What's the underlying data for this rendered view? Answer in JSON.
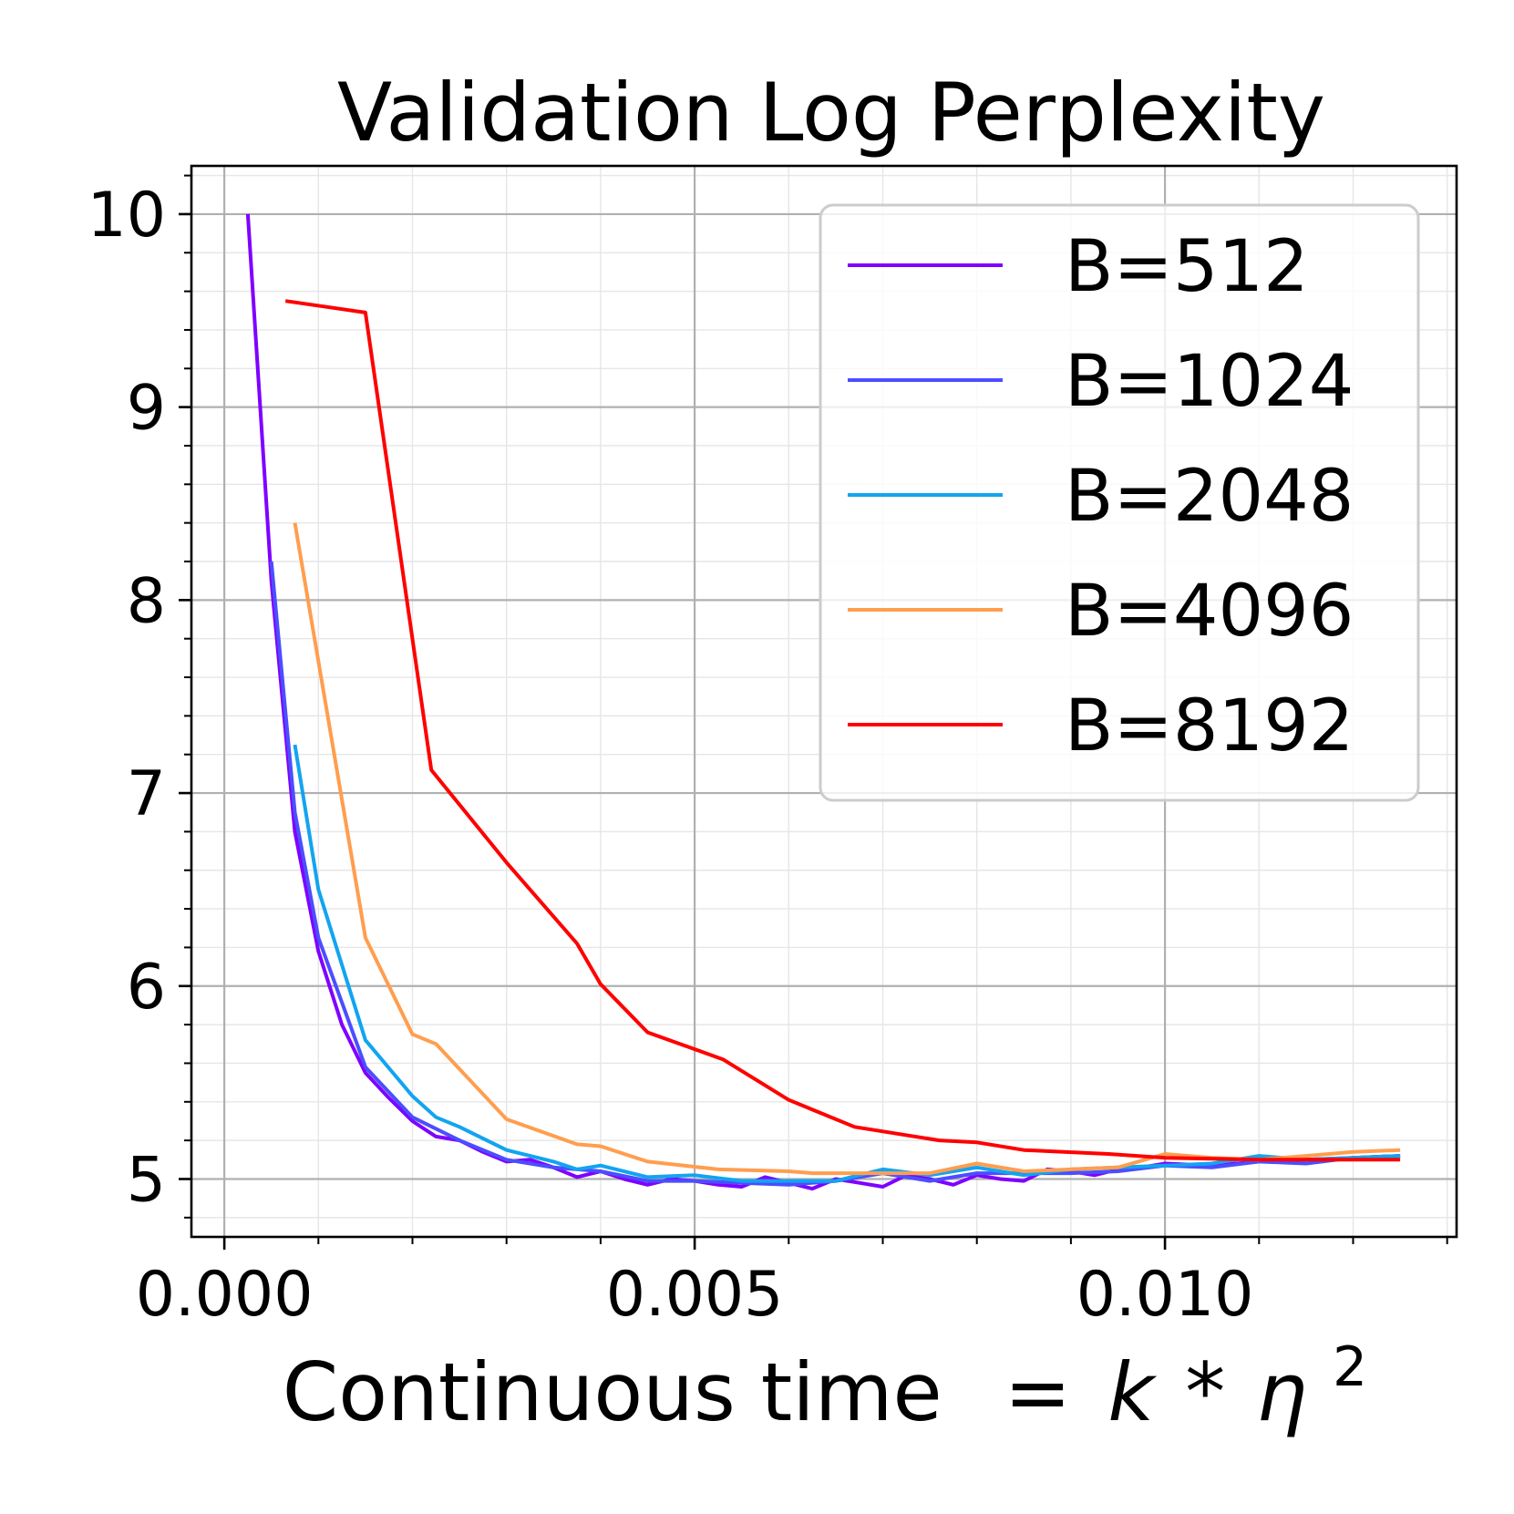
{
  "chart_data": {
    "type": "line",
    "title": "Validation Log Perplexity",
    "xlabel": "Continuous time",
    "xlabel_formula": {
      "eq": "=",
      "k": "k",
      "star": "*",
      "eta": "η",
      "exp": "2"
    },
    "ylabel": "",
    "xlim": [
      -0.00035,
      0.0131
    ],
    "ylim": [
      4.7,
      10.25
    ],
    "x_ticks": [
      {
        "value": 0.0,
        "label": "0.000"
      },
      {
        "value": 0.005,
        "label": "0.005"
      },
      {
        "value": 0.01,
        "label": "0.010"
      }
    ],
    "x_minor_step": 0.001,
    "y_ticks": [
      {
        "value": 5,
        "label": "5"
      },
      {
        "value": 6,
        "label": "6"
      },
      {
        "value": 7,
        "label": "7"
      },
      {
        "value": 8,
        "label": "8"
      },
      {
        "value": 9,
        "label": "9"
      },
      {
        "value": 10,
        "label": "10"
      }
    ],
    "y_minor_step": 0.2,
    "grid": true,
    "legend_position": "top-right",
    "series": [
      {
        "name": "B=512",
        "color": "#7f00ff",
        "points": [
          [
            0.00025,
            10.0
          ],
          [
            0.0005,
            8.1
          ],
          [
            0.00075,
            6.8
          ],
          [
            0.001,
            6.18
          ],
          [
            0.00125,
            5.8
          ],
          [
            0.0015,
            5.55
          ],
          [
            0.00175,
            5.42
          ],
          [
            0.002,
            5.3
          ],
          [
            0.00225,
            5.22
          ],
          [
            0.0025,
            5.2
          ],
          [
            0.00275,
            5.14
          ],
          [
            0.003,
            5.09
          ],
          [
            0.00325,
            5.1
          ],
          [
            0.0035,
            5.06
          ],
          [
            0.00375,
            5.01
          ],
          [
            0.004,
            5.04
          ],
          [
            0.00425,
            5.0
          ],
          [
            0.0045,
            4.97
          ],
          [
            0.00475,
            5.0
          ],
          [
            0.005,
            4.99
          ],
          [
            0.00525,
            4.97
          ],
          [
            0.0055,
            4.96
          ],
          [
            0.00575,
            5.01
          ],
          [
            0.006,
            4.98
          ],
          [
            0.00625,
            4.95
          ],
          [
            0.0065,
            5.0
          ],
          [
            0.00675,
            4.98
          ],
          [
            0.007,
            4.96
          ],
          [
            0.00725,
            5.02
          ],
          [
            0.0075,
            5.0
          ],
          [
            0.00775,
            4.97
          ],
          [
            0.008,
            5.02
          ],
          [
            0.00825,
            5.0
          ],
          [
            0.0085,
            4.99
          ],
          [
            0.00875,
            5.05
          ],
          [
            0.009,
            5.04
          ],
          [
            0.00925,
            5.02
          ],
          [
            0.0095,
            5.05
          ],
          [
            0.00975,
            5.06
          ],
          [
            0.01,
            5.08
          ],
          [
            0.0105,
            5.07
          ],
          [
            0.011,
            5.09
          ],
          [
            0.0115,
            5.1
          ],
          [
            0.012,
            5.11
          ],
          [
            0.0125,
            5.12
          ]
        ]
      },
      {
        "name": "B=1024",
        "color": "#4b4eff",
        "points": [
          [
            0.0005,
            8.2
          ],
          [
            0.00075,
            6.9
          ],
          [
            0.001,
            6.25
          ],
          [
            0.0015,
            5.58
          ],
          [
            0.002,
            5.32
          ],
          [
            0.0025,
            5.2
          ],
          [
            0.003,
            5.1
          ],
          [
            0.0035,
            5.06
          ],
          [
            0.004,
            5.04
          ],
          [
            0.0045,
            4.99
          ],
          [
            0.005,
            4.99
          ],
          [
            0.0055,
            4.98
          ],
          [
            0.006,
            4.97
          ],
          [
            0.0065,
            4.99
          ],
          [
            0.007,
            5.03
          ],
          [
            0.0075,
            4.99
          ],
          [
            0.008,
            5.03
          ],
          [
            0.0085,
            5.03
          ],
          [
            0.009,
            5.03
          ],
          [
            0.0095,
            5.04
          ],
          [
            0.01,
            5.07
          ],
          [
            0.0105,
            5.06
          ],
          [
            0.011,
            5.09
          ],
          [
            0.0115,
            5.08
          ],
          [
            0.012,
            5.11
          ],
          [
            0.0125,
            5.12
          ]
        ]
      },
      {
        "name": "B=2048",
        "color": "#12a4f0",
        "points": [
          [
            0.00075,
            7.25
          ],
          [
            0.001,
            6.5
          ],
          [
            0.0015,
            5.72
          ],
          [
            0.002,
            5.43
          ],
          [
            0.00225,
            5.32
          ],
          [
            0.0025,
            5.27
          ],
          [
            0.003,
            5.15
          ],
          [
            0.0035,
            5.09
          ],
          [
            0.00375,
            5.05
          ],
          [
            0.004,
            5.07
          ],
          [
            0.0045,
            5.01
          ],
          [
            0.005,
            5.02
          ],
          [
            0.0055,
            4.99
          ],
          [
            0.006,
            4.99
          ],
          [
            0.0065,
            4.99
          ],
          [
            0.007,
            5.05
          ],
          [
            0.0075,
            5.02
          ],
          [
            0.008,
            5.06
          ],
          [
            0.0085,
            5.02
          ],
          [
            0.009,
            5.05
          ],
          [
            0.0095,
            5.06
          ],
          [
            0.01,
            5.07
          ],
          [
            0.0105,
            5.08
          ],
          [
            0.011,
            5.12
          ],
          [
            0.0115,
            5.1
          ],
          [
            0.012,
            5.11
          ],
          [
            0.0125,
            5.12
          ]
        ]
      },
      {
        "name": "B=4096",
        "color": "#ff9e4f",
        "points": [
          [
            0.00075,
            8.4
          ],
          [
            0.0015,
            6.25
          ],
          [
            0.002,
            5.75
          ],
          [
            0.00225,
            5.7
          ],
          [
            0.003,
            5.31
          ],
          [
            0.00375,
            5.18
          ],
          [
            0.004,
            5.17
          ],
          [
            0.0045,
            5.09
          ],
          [
            0.00525,
            5.05
          ],
          [
            0.006,
            5.04
          ],
          [
            0.00625,
            5.03
          ],
          [
            0.007,
            5.03
          ],
          [
            0.0075,
            5.03
          ],
          [
            0.008,
            5.08
          ],
          [
            0.0085,
            5.04
          ],
          [
            0.009,
            5.05
          ],
          [
            0.0095,
            5.06
          ],
          [
            0.01,
            5.13
          ],
          [
            0.0105,
            5.11
          ],
          [
            0.011,
            5.1
          ],
          [
            0.0115,
            5.12
          ],
          [
            0.012,
            5.14
          ],
          [
            0.0125,
            5.15
          ]
        ]
      },
      {
        "name": "B=8192",
        "color": "#ff0000",
        "points": [
          [
            0.00065,
            9.55
          ],
          [
            0.0015,
            9.49
          ],
          [
            0.0022,
            7.12
          ],
          [
            0.003,
            6.64
          ],
          [
            0.00375,
            6.22
          ],
          [
            0.004,
            6.01
          ],
          [
            0.0045,
            5.76
          ],
          [
            0.0053,
            5.62
          ],
          [
            0.006,
            5.41
          ],
          [
            0.0067,
            5.27
          ],
          [
            0.0076,
            5.2
          ],
          [
            0.008,
            5.19
          ],
          [
            0.0085,
            5.15
          ],
          [
            0.0094,
            5.13
          ],
          [
            0.01,
            5.11
          ],
          [
            0.011,
            5.1
          ],
          [
            0.0115,
            5.1
          ],
          [
            0.012,
            5.1
          ],
          [
            0.0125,
            5.1
          ]
        ]
      }
    ]
  }
}
